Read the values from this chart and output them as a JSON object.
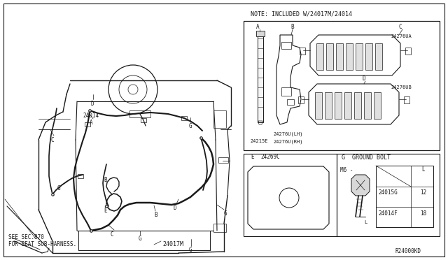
{
  "bg_color": "#ffffff",
  "line_color": "#1a1a1a",
  "fig_width": 6.4,
  "fig_height": 3.72,
  "dpi": 100,
  "note_text": "NOTE: INCLUDED W/24017M/24014",
  "bottom_left_text1": "SEE SEC.870",
  "bottom_left_text2": "FOR SEAT SUB-HARNESS.",
  "ref_code": "R24000KD",
  "ground_bolt_title": "G  GROUND BOLT",
  "m6_label": "M6 -",
  "row1_part": "24015G",
  "row1_val": "12",
  "row2_part": "24014F",
  "row2_val": "18",
  "L_col": "L"
}
